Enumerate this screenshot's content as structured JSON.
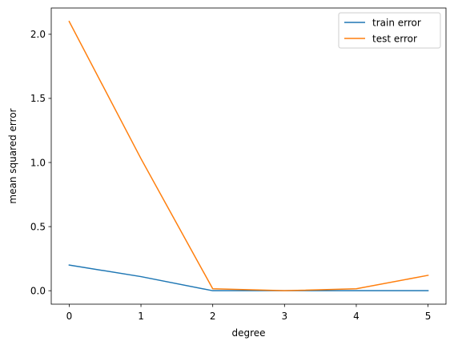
{
  "chart_data": {
    "type": "line",
    "title": "",
    "xlabel": "degree",
    "ylabel": "mean squared error",
    "x": [
      0,
      1,
      2,
      3,
      4,
      5
    ],
    "xlim": [
      -0.25,
      5.25
    ],
    "ylim": [
      -0.105,
      2.205
    ],
    "xticks": [
      0,
      1,
      2,
      3,
      4,
      5
    ],
    "xtick_labels": [
      "0",
      "1",
      "2",
      "3",
      "4",
      "5"
    ],
    "yticks": [
      0.0,
      0.5,
      1.0,
      1.5,
      2.0
    ],
    "ytick_labels": [
      "0.0",
      "0.5",
      "1.0",
      "1.5",
      "2.0"
    ],
    "grid": false,
    "legend_position": "top-right",
    "series": [
      {
        "name": "train error",
        "color": "#1f77b4",
        "values": [
          0.2,
          0.11,
          0.0,
          0.0,
          0.0,
          0.0
        ]
      },
      {
        "name": "test error",
        "color": "#ff7f0e",
        "values": [
          2.1,
          1.03,
          0.015,
          0.0,
          0.015,
          0.12
        ]
      }
    ]
  }
}
